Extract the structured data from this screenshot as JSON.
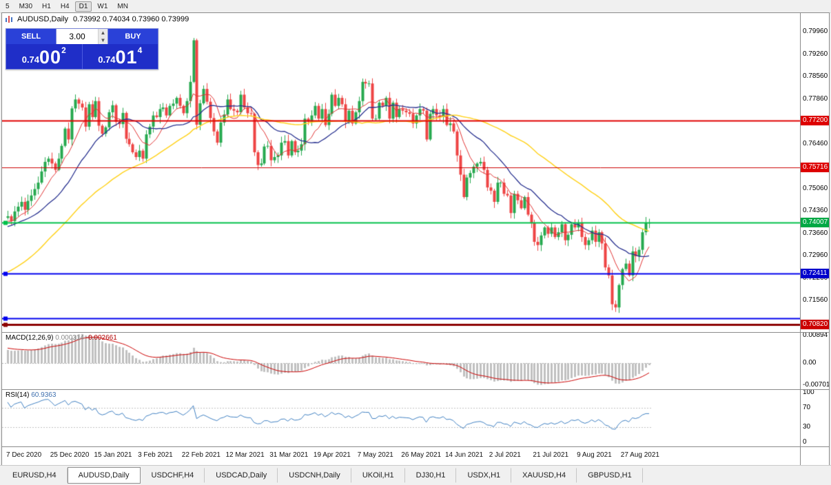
{
  "toolbar": {
    "timeframes": [
      {
        "label": "5",
        "active": false
      },
      {
        "label": "M30",
        "active": false
      },
      {
        "label": "H1",
        "active": false
      },
      {
        "label": "H4",
        "active": false
      },
      {
        "label": "D1",
        "active": true
      },
      {
        "label": "W1",
        "active": false
      },
      {
        "label": "MN",
        "active": false
      }
    ]
  },
  "chart": {
    "symbol_title": "AUDUSD,Daily",
    "ohlc_text": "0.73992 0.74034 0.73960 0.73999"
  },
  "trade_panel": {
    "sell_label": "SELL",
    "buy_label": "BUY",
    "volume": "3.00",
    "sell_price_small": "0.74",
    "sell_price_big": "00",
    "sell_price_sup": "2",
    "buy_price_small": "0.74",
    "buy_price_big": "01",
    "buy_price_sup": "4"
  },
  "indicators": {
    "macd_name": "MACD(12,26,9)",
    "macd_main": "0.000314",
    "macd_signal": "-0.002661",
    "rsi_name": "RSI(14)",
    "rsi_value": "60.9363"
  },
  "axes": {
    "price_ticks": [
      "0.79960",
      "0.79260",
      "0.78560",
      "0.77860",
      "0.77160",
      "0.76460",
      "0.75760",
      "0.75060",
      "0.74360",
      "0.73660",
      "0.72960",
      "0.72260",
      "0.71560",
      "0.70860"
    ],
    "macd_ticks": [
      {
        "label": "0.00894",
        "value": 0.00894
      },
      {
        "label": "0.00",
        "value": 0
      },
      {
        "label": "-0.00701",
        "value": -0.00701
      }
    ],
    "rsi_ticks": [
      {
        "label": "100",
        "value": 100
      },
      {
        "label": "70",
        "value": 70
      },
      {
        "label": "30",
        "value": 30
      },
      {
        "label": "0",
        "value": 0
      }
    ]
  },
  "tabs": [
    {
      "label": "EURUSD,H4",
      "active": false
    },
    {
      "label": "AUDUSD,Daily",
      "active": true
    },
    {
      "label": "USDCHF,H4",
      "active": false
    },
    {
      "label": "USDCAD,Daily",
      "active": false
    },
    {
      "label": "USDCNH,Daily",
      "active": false
    },
    {
      "label": "UKOil,H1",
      "active": false
    },
    {
      "label": "DJ30,H1",
      "active": false
    },
    {
      "label": "USDX,H1",
      "active": false
    },
    {
      "label": "XAUUSD,H4",
      "active": false
    },
    {
      "label": "GBPUSD,H1",
      "active": false
    }
  ],
  "chart_data": {
    "type": "candlestick",
    "symbol": "AUDUSD",
    "timeframe": "Daily",
    "last_candle": {
      "open": 0.73992,
      "high": 0.74034,
      "low": 0.7396,
      "close": 0.73999
    },
    "price_range": {
      "max": 0.8055,
      "min": 0.7058
    },
    "macd_range": {
      "max": 0.00894,
      "min": -0.00701
    },
    "colors": {
      "candle_up": "#26a94f",
      "candle_down": "#ee4444",
      "macd_hist": "#c0c0c0",
      "macd_signal": "#cc0000",
      "rsi_line": "#3e7fc1",
      "rsi_level": "#c0c0c0"
    },
    "moving_averages": [
      {
        "period": 8,
        "color": "#e03131",
        "width": 1
      },
      {
        "period": 20,
        "color": "#27308f",
        "width": 1.3
      },
      {
        "period": 50,
        "color": "#ffd21e",
        "width": 1.5
      }
    ],
    "levels": [
      {
        "price": 0.772,
        "color": "#e00000",
        "width": 2,
        "badge": "0.77200",
        "badge_bg": "#dd0000",
        "handle": false
      },
      {
        "price": 0.75716,
        "color": "#cc0000",
        "width": 1,
        "badge": "0.75716",
        "badge_bg": "#dd0000",
        "handle": false
      },
      {
        "price": 0.74007,
        "color": "#00c04a",
        "width": 2,
        "badge": "0.74007",
        "badge_bg": "#00a844",
        "handle": true
      },
      {
        "price": 0.72411,
        "color": "#0000ee",
        "width": 2,
        "badge": "0.72411",
        "badge_bg": "#0000cc",
        "handle": true
      },
      {
        "price": 0.71,
        "color": "#0000ee",
        "width": 2,
        "badge": null,
        "badge_bg": null,
        "handle": true
      },
      {
        "price": 0.7082,
        "color": "#8b0000",
        "width": 3,
        "badge": "0.70820",
        "badge_bg": "#cc0000",
        "handle": true
      }
    ],
    "date_labels": [
      {
        "label": "7 Dec 2020",
        "index": 0
      },
      {
        "label": "25 Dec 2020",
        "index": 13
      },
      {
        "label": "15 Jan 2021",
        "index": 26
      },
      {
        "label": "3 Feb 2021",
        "index": 39
      },
      {
        "label": "22 Feb 2021",
        "index": 52
      },
      {
        "label": "12 Mar 2021",
        "index": 65
      },
      {
        "label": "31 Mar 2021",
        "index": 78
      },
      {
        "label": "19 Apr 2021",
        "index": 91
      },
      {
        "label": "7 May 2021",
        "index": 104
      },
      {
        "label": "26 May 2021",
        "index": 117
      },
      {
        "label": "14 Jun 2021",
        "index": 130
      },
      {
        "label": "2 Jul 2021",
        "index": 143
      },
      {
        "label": "21 Jul 2021",
        "index": 156
      },
      {
        "label": "9 Aug 2021",
        "index": 169
      },
      {
        "label": "27 Aug 2021",
        "index": 182
      }
    ],
    "prehistory": [
      0.7165,
      0.715,
      0.7135,
      0.712,
      0.7105,
      0.709,
      0.7075,
      0.706,
      0.705,
      0.704,
      0.7035,
      0.703,
      0.7028,
      0.704,
      0.706,
      0.708,
      0.71,
      0.712,
      0.714,
      0.716,
      0.718,
      0.72,
      0.722,
      0.724,
      0.7255,
      0.727,
      0.7285,
      0.73,
      0.731,
      0.732,
      0.733,
      0.734,
      0.735,
      0.736,
      0.7365,
      0.737,
      0.7375,
      0.738,
      0.7385,
      0.739,
      0.7395,
      0.74,
      0.7405,
      0.7408,
      0.74,
      0.7395,
      0.739,
      0.74,
      0.741,
      0.7415
    ],
    "closes": [
      0.742,
      0.7405,
      0.7435,
      0.745,
      0.7465,
      0.744,
      0.7468,
      0.7485,
      0.7505,
      0.7525,
      0.756,
      0.759,
      0.76,
      0.7585,
      0.7565,
      0.76,
      0.764,
      0.7694,
      0.766,
      0.7757,
      0.7785,
      0.7772,
      0.776,
      0.77,
      0.777,
      0.773,
      0.778,
      0.7703,
      0.7678,
      0.7698,
      0.7745,
      0.7767,
      0.7715,
      0.7708,
      0.7743,
      0.7662,
      0.7645,
      0.762,
      0.7605,
      0.7625,
      0.76,
      0.7676,
      0.77,
      0.7735,
      0.773,
      0.7755,
      0.776,
      0.7735,
      0.7765,
      0.7772,
      0.779,
      0.7765,
      0.7742,
      0.778,
      0.784,
      0.797,
      0.7706,
      0.7773,
      0.7818,
      0.7778,
      0.7727,
      0.7685,
      0.765,
      0.7713,
      0.7738,
      0.7785,
      0.7755,
      0.775,
      0.7745,
      0.78,
      0.776,
      0.7742,
      0.774,
      0.762,
      0.758,
      0.7585,
      0.7638,
      0.764,
      0.7595,
      0.7605,
      0.761,
      0.765,
      0.7655,
      0.761,
      0.7655,
      0.762,
      0.7625,
      0.7645,
      0.7725,
      0.7715,
      0.7735,
      0.7765,
      0.7725,
      0.7755,
      0.7705,
      0.774,
      0.78,
      0.7765,
      0.779,
      0.777,
      0.7715,
      0.775,
      0.771,
      0.7745,
      0.778,
      0.784,
      0.7835,
      0.7835,
      0.7725,
      0.7725,
      0.7775,
      0.7765,
      0.779,
      0.7725,
      0.7775,
      0.773,
      0.7755,
      0.775,
      0.7745,
      0.774,
      0.771,
      0.7735,
      0.7755,
      0.775,
      0.766,
      0.774,
      0.7755,
      0.7735,
      0.773,
      0.7755,
      0.7705,
      0.771,
      0.7685,
      0.761,
      0.755,
      0.748,
      0.7541,
      0.7555,
      0.7575,
      0.7585,
      0.759,
      0.7565,
      0.751,
      0.75,
      0.7465,
      0.7525,
      0.7525,
      0.749,
      0.7485,
      0.743,
      0.749,
      0.747,
      0.7445,
      0.748,
      0.7425,
      0.74,
      0.734,
      0.733,
      0.736,
      0.7385,
      0.7365,
      0.7385,
      0.7355,
      0.737,
      0.7395,
      0.7345,
      0.7362,
      0.7395,
      0.7385,
      0.74,
      0.7355,
      0.733,
      0.7345,
      0.7375,
      0.734,
      0.737,
      0.7335,
      0.726,
      0.7235,
      0.7145,
      0.7135,
      0.7205,
      0.7255,
      0.7272,
      0.7235,
      0.731,
      0.7295,
      0.7315,
      0.737,
      0.73992,
      0.73999
    ]
  }
}
